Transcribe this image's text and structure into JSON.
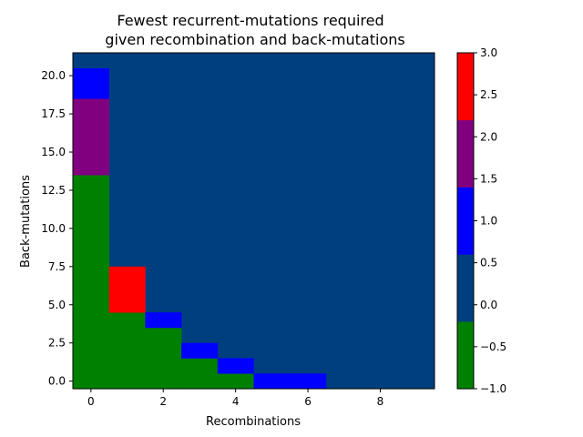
{
  "chart_data": {
    "type": "heatmap",
    "title_lines": [
      "Fewest recurrent-mutations required",
      "given recombination and back-mutations"
    ],
    "xlabel": "Recombinations",
    "ylabel": "Back-mutations",
    "x_range": [
      0,
      9
    ],
    "y_range": [
      0,
      21
    ],
    "xlim": [
      -0.5,
      9.5
    ],
    "ylim": [
      -0.5,
      21.5
    ],
    "x_ticks": [
      0,
      2,
      4,
      6,
      8
    ],
    "x_tick_labels": [
      "0",
      "2",
      "4",
      "6",
      "8"
    ],
    "y_ticks": [
      0,
      2.5,
      5,
      7.5,
      10,
      12.5,
      15,
      17.5,
      20
    ],
    "y_tick_labels": [
      "0.0",
      "2.5",
      "5.0",
      "7.5",
      "10.0",
      "12.5",
      "15.0",
      "17.5",
      "20.0"
    ],
    "background_value": 0,
    "cells": [
      {
        "x": 0,
        "y_from": 0,
        "y_to": 13,
        "value": -1
      },
      {
        "x": 0,
        "y_from": 14,
        "y_to": 18,
        "value": 2
      },
      {
        "x": 0,
        "y_from": 19,
        "y_to": 20,
        "value": 1
      },
      {
        "x": 0,
        "y_from": 21,
        "y_to": 21,
        "value": 0
      },
      {
        "x": 1,
        "y_from": 0,
        "y_to": 4,
        "value": -1
      },
      {
        "x": 1,
        "y_from": 5,
        "y_to": 7,
        "value": 3
      },
      {
        "x": 2,
        "y_from": 0,
        "y_to": 3,
        "value": -1
      },
      {
        "x": 2,
        "y_from": 4,
        "y_to": 4,
        "value": 1
      },
      {
        "x": 3,
        "y_from": 0,
        "y_to": 1,
        "value": -1
      },
      {
        "x": 3,
        "y_from": 2,
        "y_to": 2,
        "value": 1
      },
      {
        "x": 4,
        "y_from": 0,
        "y_to": 0,
        "value": -1
      },
      {
        "x": 4,
        "y_from": 1,
        "y_to": 1,
        "value": 1
      },
      {
        "x": 5,
        "y_from": 0,
        "y_to": 0,
        "value": 1
      },
      {
        "x": 6,
        "y_from": 0,
        "y_to": 0,
        "value": 1
      }
    ],
    "colorbar": {
      "range": [
        -1,
        3
      ],
      "bands": [
        {
          "from": -1,
          "to": -0.2,
          "color": "#008000"
        },
        {
          "from": -0.2,
          "to": 0.6,
          "color": "#003f7f"
        },
        {
          "from": 0.6,
          "to": 1.4,
          "color": "#0000ff"
        },
        {
          "from": 1.4,
          "to": 2.2,
          "color": "#800080"
        },
        {
          "from": 2.2,
          "to": 3,
          "color": "#ff0000"
        }
      ],
      "ticks": [
        -1,
        -0.5,
        0,
        0.5,
        1,
        1.5,
        2,
        2.5,
        3
      ],
      "tick_labels": [
        "−1.0",
        "−0.5",
        "0.0",
        "0.5",
        "1.0",
        "1.5",
        "2.0",
        "2.5",
        "3.0"
      ]
    },
    "value_colors": {
      "-1": "#008000",
      "0": "#003f7f",
      "1": "#0000ff",
      "2": "#800080",
      "3": "#ff0000"
    }
  }
}
